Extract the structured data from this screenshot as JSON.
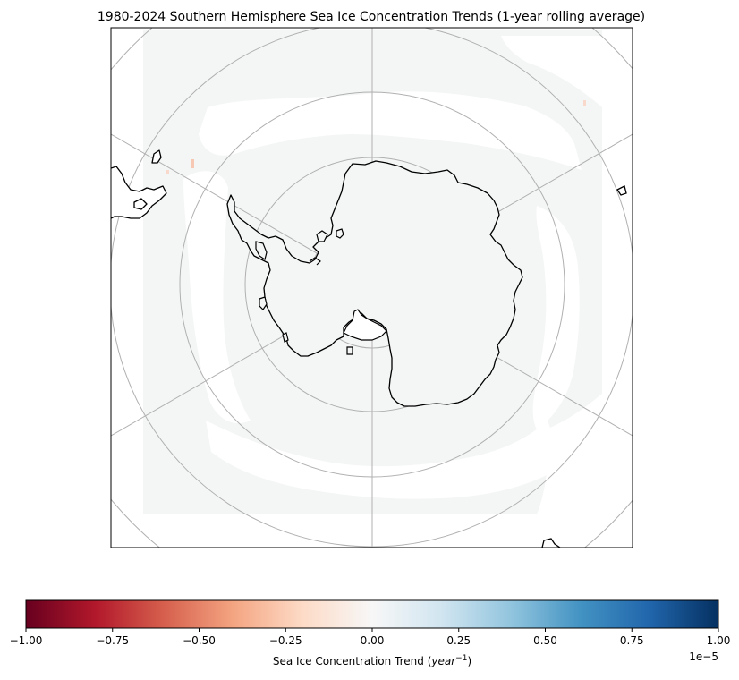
{
  "figure": {
    "title": "1980-2024 Southern Hemisphere Sea Ice Concentration Trends (1-year rolling average)"
  },
  "map": {
    "projection": "South Polar Stereographic",
    "region": "Antarctica",
    "gridlines": true,
    "meridian_count": 12,
    "parallel_ring_count": 5,
    "colors": {
      "ocean_background": "#ffffff",
      "data_field": "#f4f6f5",
      "coastline": "#000000",
      "gridline": "#b0b0b0",
      "positive_speckle": "#f7c8b4"
    }
  },
  "colorbar": {
    "cmap": "RdBu",
    "min": -1.0,
    "max": 1.0,
    "ticks": [
      "−1.00",
      "−0.75",
      "−0.50",
      "−0.25",
      "0.00",
      "0.25",
      "0.50",
      "0.75",
      "1.00"
    ],
    "label_prefix": "Sea Ice Concentration Trend (",
    "label_math": "year",
    "label_exp": "−1",
    "label_suffix": ")",
    "offset_text_base": "1e",
    "offset_text_exp": "−5",
    "stops": [
      "#67001f",
      "#b2182b",
      "#d6604d",
      "#f4a582",
      "#fddbc7",
      "#f7f7f7",
      "#d1e5f0",
      "#92c5de",
      "#4393c3",
      "#2166ac",
      "#053061"
    ]
  }
}
